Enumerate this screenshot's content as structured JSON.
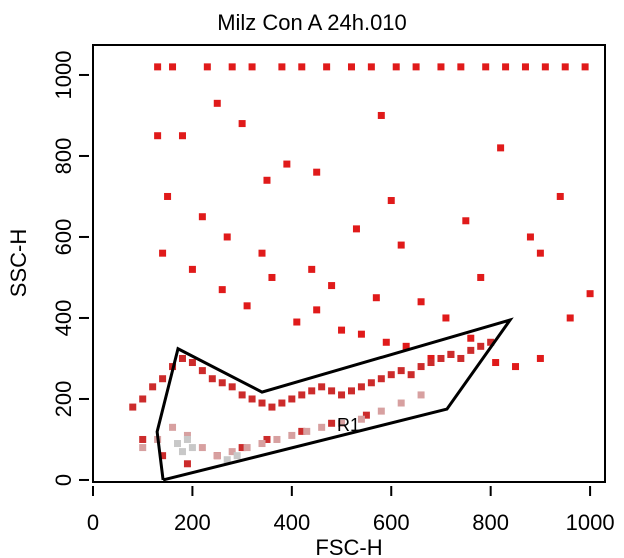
{
  "chart_data": {
    "type": "scatter",
    "title": "Milz Con A 24h.010",
    "x_label": "FSC-H",
    "y_label": "SSC-H",
    "xlim": [
      0,
      1030
    ],
    "ylim": [
      -5,
      1074
    ],
    "xticks": [
      0,
      200,
      400,
      600,
      800,
      1000
    ],
    "yticks": [
      0,
      200,
      400,
      600,
      800,
      1000
    ],
    "series": [
      {
        "color": "#e01a1a",
        "x": [
          130,
          160,
          230,
          280,
          320,
          380,
          420,
          470,
          520,
          560,
          610,
          650,
          700,
          740,
          790,
          830,
          870,
          910,
          950,
          990,
          140,
          200,
          260,
          310,
          360,
          410,
          450,
          500,
          540,
          590,
          630,
          680,
          720,
          760,
          810,
          850,
          900,
          960,
          150,
          220,
          270,
          340,
          390,
          440,
          480,
          530,
          570,
          620,
          660,
          710,
          780,
          880,
          940,
          180,
          300,
          450,
          600,
          750,
          900,
          1000,
          130,
          250,
          350,
          580,
          820
        ],
        "values": [
          1020,
          1020,
          1020,
          1020,
          1020,
          1020,
          1020,
          1020,
          1020,
          1020,
          1020,
          1020,
          1020,
          1020,
          1020,
          1020,
          1020,
          1020,
          1020,
          1020,
          560,
          520,
          470,
          430,
          500,
          390,
          420,
          370,
          360,
          340,
          330,
          300,
          310,
          350,
          290,
          280,
          300,
          400,
          700,
          650,
          600,
          560,
          780,
          520,
          480,
          620,
          450,
          580,
          440,
          400,
          500,
          600,
          700,
          850,
          880,
          760,
          690,
          640,
          560,
          460,
          850,
          930,
          740,
          900,
          820
        ]
      },
      {
        "color": "#cc2b2b",
        "x": [
          80,
          100,
          120,
          140,
          160,
          180,
          200,
          220,
          240,
          260,
          280,
          300,
          320,
          340,
          360,
          380,
          400,
          420,
          440,
          460,
          480,
          500,
          520,
          540,
          560,
          580,
          600,
          620,
          640,
          660,
          680,
          700,
          720,
          740,
          760,
          780,
          800,
          100,
          140,
          190,
          250,
          300,
          350,
          420,
          480,
          550
        ],
        "values": [
          180,
          200,
          230,
          250,
          280,
          300,
          290,
          270,
          250,
          240,
          230,
          210,
          200,
          190,
          180,
          190,
          200,
          210,
          220,
          230,
          220,
          210,
          220,
          230,
          240,
          250,
          260,
          270,
          260,
          280,
          290,
          300,
          310,
          300,
          320,
          330,
          340,
          100,
          60,
          40,
          60,
          80,
          100,
          120,
          140,
          160
        ]
      },
      {
        "color": "#d7a0a0",
        "x": [
          100,
          130,
          160,
          190,
          220,
          250,
          280,
          310,
          340,
          370,
          400,
          430,
          460,
          500,
          540,
          580,
          620,
          660
        ],
        "values": [
          80,
          100,
          130,
          110,
          80,
          60,
          70,
          80,
          90,
          100,
          110,
          120,
          130,
          140,
          150,
          170,
          190,
          210
        ]
      },
      {
        "color": "#c8c8c8",
        "x": [
          170,
          180,
          190,
          200,
          270,
          290
        ],
        "values": [
          90,
          70,
          100,
          80,
          50,
          60
        ]
      }
    ],
    "gate": {
      "label": "R1",
      "x": [
        141,
        129,
        171,
        340,
        839,
        712,
        141
      ],
      "y": [
        0,
        119,
        324,
        217,
        395,
        175,
        0
      ]
    }
  }
}
